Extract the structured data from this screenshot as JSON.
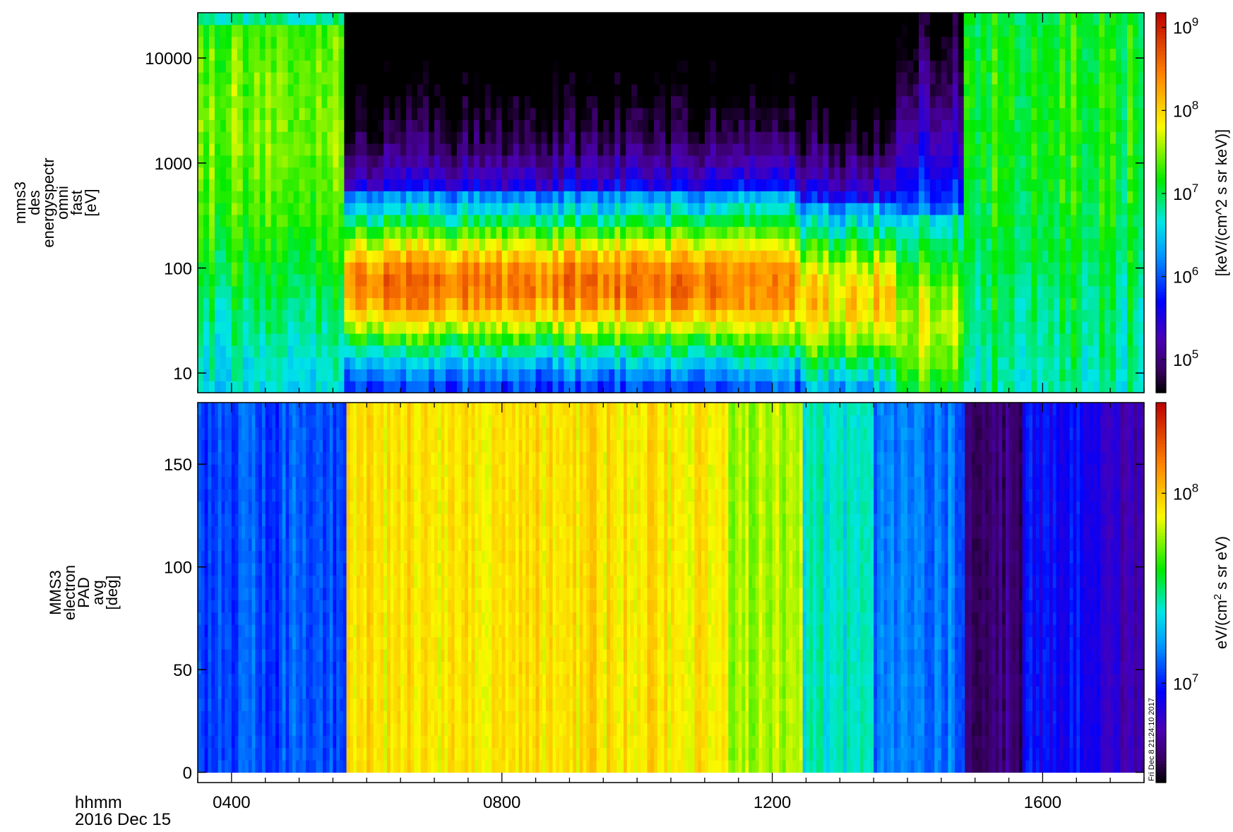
{
  "timestamp": "Fri Dec  8 21:24:10 2017",
  "x_axis": {
    "label_line1": "hhmm",
    "label_line2": "2016 Dec 15",
    "range": [
      "03:30",
      "17:30"
    ],
    "ticks": [
      "0400",
      "0800",
      "1200",
      "1600"
    ]
  },
  "chart_data": [
    {
      "type": "heatmap",
      "ylabel": [
        "mms3",
        "des",
        "energyspectr",
        "omni",
        "fast",
        "[eV]"
      ],
      "yscale": "log",
      "ylim": [
        6.5,
        27000
      ],
      "yticks": [
        "10",
        "100",
        "1000",
        "10000"
      ],
      "colorbar": {
        "scale": "log",
        "range": [
          40000,
          1500000000
        ],
        "ticks": [
          "10^5",
          "10^6",
          "10^7",
          "10^8",
          "10^9"
        ],
        "label": "[keV/(cm^2 s sr keV)]"
      },
      "segments": [
        {
          "x": [
            "03:30",
            "05:40"
          ],
          "peak_energy_eV": 2500,
          "peak_flux": 30000000,
          "high_cut_eV": 20000,
          "band_width_decades": 1.6,
          "floor_flux": 2000000
        },
        {
          "x": [
            "05:40",
            "11:20"
          ],
          "peak_energy_eV": 70,
          "peak_flux": 300000000,
          "high_cut_eV": 500,
          "band_width_decades": 0.5,
          "floor_flux": 300000
        },
        {
          "x": [
            "11:20",
            "12:25"
          ],
          "peak_energy_eV": 70,
          "peak_flux": 200000000,
          "high_cut_eV": 500,
          "band_width_decades": 0.55,
          "floor_flux": 250000
        },
        {
          "x": [
            "12:25",
            "13:50"
          ],
          "peak_energy_eV": 50,
          "peak_flux": 100000000,
          "high_cut_eV": 400,
          "band_width_decades": 0.6,
          "floor_flux": 250000
        },
        {
          "x": [
            "13:50",
            "14:50"
          ],
          "peak_energy_eV": 30,
          "peak_flux": 50000000,
          "high_cut_eV": 300,
          "band_width_decades": 0.7,
          "floor_flux": 1500000
        },
        {
          "x": [
            "14:50",
            "17:30"
          ],
          "peak_energy_eV": 3000,
          "peak_flux": 15000000,
          "high_cut_eV": 25000,
          "band_width_decades": 1.8,
          "floor_flux": 4000000
        }
      ]
    },
    {
      "type": "heatmap",
      "ylabel": [
        "MMS3",
        "electron",
        "PAD",
        "avg",
        "[deg]"
      ],
      "yscale": "linear",
      "ylim": [
        -5,
        180
      ],
      "yticks": [
        "0",
        "50",
        "100",
        "150"
      ],
      "colorbar": {
        "scale": "log",
        "range": [
          3000000,
          300000000
        ],
        "ticks": [
          "10^7",
          "10^8"
        ],
        "label": "eV/(cm^2 s sr eV)"
      },
      "segments": [
        {
          "x": [
            "03:30",
            "05:40"
          ],
          "flux": 12000000
        },
        {
          "x": [
            "05:40",
            "11:20"
          ],
          "flux": 85000000
        },
        {
          "x": [
            "11:20",
            "12:25"
          ],
          "flux": 60000000
        },
        {
          "x": [
            "12:25",
            "13:30"
          ],
          "flux": 25000000
        },
        {
          "x": [
            "13:30",
            "14:50"
          ],
          "flux": 14000000
        },
        {
          "x": [
            "14:50",
            "15:40"
          ],
          "flux": 4500000
        },
        {
          "x": [
            "15:40",
            "16:50"
          ],
          "flux": 9000000
        },
        {
          "x": [
            "16:50",
            "17:30"
          ],
          "flux": 6000000
        }
      ]
    }
  ]
}
